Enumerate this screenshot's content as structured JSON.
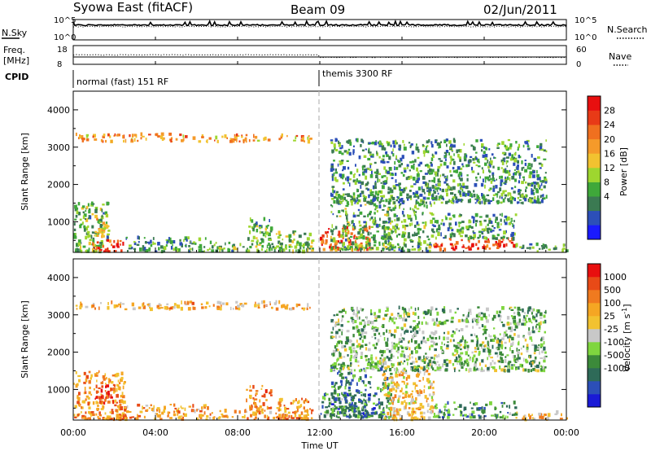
{
  "header": {
    "station": "Syowa East (fitACF)",
    "beam": "Beam 09",
    "date": "02/Jun/2011"
  },
  "top_panels": {
    "nsky_label": "N.Sky",
    "nsky_ticks": [
      "10^5",
      "10^0"
    ],
    "nsearch_label": "N.Search",
    "nsearch_ticks": [
      "10^5",
      "10^0"
    ],
    "freq_label": "Freq.",
    "freq_unit": "[MHz]",
    "freq_ticks": [
      "18",
      "8"
    ],
    "nave_label": "Nave",
    "nave_ticks": [
      "60",
      "0"
    ],
    "cpid_label": "CPID",
    "cpid_segments": [
      {
        "label": "normal (fast) 151 RF",
        "start_hour": 0
      },
      {
        "label": "themis 3300 RF",
        "start_hour": 12
      }
    ]
  },
  "chart_data": [
    {
      "type": "heatmap",
      "name": "power",
      "ylabel": "Slant Range [km]",
      "ylim": [
        180,
        4500
      ],
      "yticks": [
        "4000",
        "3000",
        "2000",
        "1000"
      ],
      "xlim_hours": [
        0,
        24
      ],
      "colorbar_label": "Power [dB]",
      "colorbar_ticks": [
        "28",
        "24",
        "20",
        "16",
        "12",
        "8",
        "4"
      ],
      "colors": [
        "#1a1aff",
        "#2c4fb8",
        "#3b7a52",
        "#3fa83a",
        "#9ed62f",
        "#f2c230",
        "#f59a2a",
        "#f0701f",
        "#e83a17",
        "#e80f0f"
      ],
      "clusters": [
        {
          "t0": 0.0,
          "t1": 1.7,
          "r0": 200,
          "r1": 1500,
          "level": 0.35
        },
        {
          "t0": 0.8,
          "t1": 2.4,
          "r0": 200,
          "r1": 500,
          "level": 0.85
        },
        {
          "t0": 1.0,
          "t1": 1.6,
          "r0": 600,
          "r1": 1200,
          "level": 0.55
        },
        {
          "t0": 2.5,
          "t1": 6.5,
          "r0": 200,
          "r1": 600,
          "level": 0.3
        },
        {
          "t0": 6.5,
          "t1": 11.5,
          "r0": 200,
          "r1": 450,
          "level": 0.35
        },
        {
          "t0": 8.4,
          "t1": 9.6,
          "r0": 450,
          "r1": 1100,
          "level": 0.35
        },
        {
          "t0": 9.8,
          "t1": 11.6,
          "r0": 200,
          "r1": 750,
          "level": 0.4
        },
        {
          "t0": 12.0,
          "t1": 14.4,
          "r0": 250,
          "r1": 900,
          "level": 0.8
        },
        {
          "t0": 12.5,
          "t1": 15.5,
          "r0": 250,
          "r1": 1700,
          "level": 0.35
        },
        {
          "t0": 15.0,
          "t1": 17.5,
          "r0": 200,
          "r1": 1500,
          "level": 0.35
        },
        {
          "t0": 17.5,
          "t1": 21.5,
          "r0": 250,
          "r1": 550,
          "level": 0.85
        },
        {
          "t0": 17.5,
          "t1": 21.5,
          "r0": 550,
          "r1": 1200,
          "level": 0.3
        },
        {
          "t0": 21.5,
          "t1": 24.0,
          "r0": 200,
          "r1": 400,
          "level": 0.3
        },
        {
          "t0": 0.1,
          "t1": 11.5,
          "r0": 3150,
          "r1": 3350,
          "level": 0.65
        },
        {
          "t0": 12.5,
          "t1": 23.0,
          "r0": 1500,
          "r1": 3200,
          "level": 0.3
        }
      ]
    },
    {
      "type": "heatmap",
      "name": "velocity",
      "ylabel": "Slant Range [km]",
      "ylim": [
        180,
        4500
      ],
      "yticks": [
        "4000",
        "3000",
        "2000",
        "1000"
      ],
      "xlim_hours": [
        0,
        24
      ],
      "colorbar_label": "Velocity [m s",
      "colorbar_label_sup": "-1",
      "colorbar_ticks": [
        "1000",
        "500",
        "100",
        "25",
        "-25",
        "-100",
        "-500",
        "-1000"
      ],
      "colors": [
        "#1a1ad6",
        "#2c4fb8",
        "#2e6a58",
        "#3c8a3a",
        "#7fd63f",
        "#c8c8c8",
        "#f2c230",
        "#f5a623",
        "#f07a1f",
        "#e84a17",
        "#e80f0f"
      ],
      "clusters": [
        {
          "t0": 0.0,
          "t1": 2.5,
          "r0": 200,
          "r1": 1500,
          "level": 0.72
        },
        {
          "t0": 1.0,
          "t1": 2.0,
          "r0": 600,
          "r1": 1200,
          "level": 0.9
        },
        {
          "t0": 2.5,
          "t1": 6.5,
          "r0": 200,
          "r1": 600,
          "level": 0.68
        },
        {
          "t0": 6.5,
          "t1": 11.5,
          "r0": 200,
          "r1": 450,
          "level": 0.7
        },
        {
          "t0": 8.4,
          "t1": 9.6,
          "r0": 450,
          "r1": 1100,
          "level": 0.75
        },
        {
          "t0": 9.8,
          "t1": 11.6,
          "r0": 200,
          "r1": 750,
          "level": 0.72
        },
        {
          "t0": 12.0,
          "t1": 14.4,
          "r0": 250,
          "r1": 900,
          "level": 0.32
        },
        {
          "t0": 12.5,
          "t1": 15.5,
          "r0": 250,
          "r1": 1700,
          "level": 0.25
        },
        {
          "t0": 15.0,
          "t1": 17.5,
          "r0": 200,
          "r1": 1500,
          "level": 0.6
        },
        {
          "t0": 17.5,
          "t1": 21.5,
          "r0": 250,
          "r1": 650,
          "level": 0.3
        },
        {
          "t0": 21.5,
          "t1": 24.0,
          "r0": 200,
          "r1": 400,
          "level": 0.6
        },
        {
          "t0": 0.1,
          "t1": 11.5,
          "r0": 3150,
          "r1": 3350,
          "level": 0.65
        },
        {
          "t0": 12.5,
          "t1": 23.0,
          "r0": 1500,
          "r1": 3200,
          "level": 0.4
        }
      ]
    }
  ],
  "xaxis": {
    "label": "Time UT",
    "ticks": [
      "00:00",
      "04:00",
      "08:00",
      "12:00",
      "16:00",
      "20:00",
      "00:00"
    ]
  }
}
